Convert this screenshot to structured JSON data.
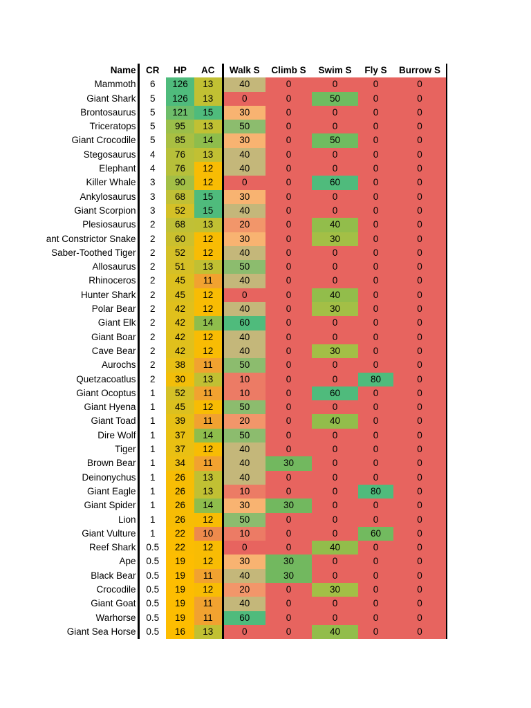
{
  "headers": [
    "Name",
    "CR",
    "HP",
    "AC",
    "Walk S",
    "Climb S",
    "Swim S",
    "Fly S",
    "Burrow S"
  ],
  "rows": [
    [
      "Mammoth",
      "6",
      "126",
      "13",
      "40",
      "0",
      "0",
      "0",
      "0"
    ],
    [
      "Giant Shark",
      "5",
      "126",
      "13",
      "0",
      "0",
      "50",
      "0",
      "0"
    ],
    [
      "Brontosaurus",
      "5",
      "121",
      "15",
      "30",
      "0",
      "0",
      "0",
      "0"
    ],
    [
      "Triceratops",
      "5",
      "95",
      "13",
      "50",
      "0",
      "0",
      "0",
      "0"
    ],
    [
      "Giant Crocodile",
      "5",
      "85",
      "14",
      "30",
      "0",
      "50",
      "0",
      "0"
    ],
    [
      "Stegosaurus",
      "4",
      "76",
      "13",
      "40",
      "0",
      "0",
      "0",
      "0"
    ],
    [
      "Elephant",
      "4",
      "76",
      "12",
      "40",
      "0",
      "0",
      "0",
      "0"
    ],
    [
      "Killer Whale",
      "3",
      "90",
      "12",
      "0",
      "0",
      "60",
      "0",
      "0"
    ],
    [
      "Ankylosaurus",
      "3",
      "68",
      "15",
      "30",
      "0",
      "0",
      "0",
      "0"
    ],
    [
      "Giant Scorpion",
      "3",
      "52",
      "15",
      "40",
      "0",
      "0",
      "0",
      "0"
    ],
    [
      "Plesiosaurus",
      "2",
      "68",
      "13",
      "20",
      "0",
      "40",
      "0",
      "0"
    ],
    [
      "ant Constrictor Snake",
      "2",
      "60",
      "12",
      "30",
      "0",
      "30",
      "0",
      "0"
    ],
    [
      "Saber-Toothed Tiger",
      "2",
      "52",
      "12",
      "40",
      "0",
      "0",
      "0",
      "0"
    ],
    [
      "Allosaurus",
      "2",
      "51",
      "13",
      "50",
      "0",
      "0",
      "0",
      "0"
    ],
    [
      "Rhinoceros",
      "2",
      "45",
      "11",
      "40",
      "0",
      "0",
      "0",
      "0"
    ],
    [
      "Hunter Shark",
      "2",
      "45",
      "12",
      "0",
      "0",
      "40",
      "0",
      "0"
    ],
    [
      "Polar Bear",
      "2",
      "42",
      "12",
      "40",
      "0",
      "30",
      "0",
      "0"
    ],
    [
      "Giant Elk",
      "2",
      "42",
      "14",
      "60",
      "0",
      "0",
      "0",
      "0"
    ],
    [
      "Giant Boar",
      "2",
      "42",
      "12",
      "40",
      "0",
      "0",
      "0",
      "0"
    ],
    [
      "Cave Bear",
      "2",
      "42",
      "12",
      "40",
      "0",
      "30",
      "0",
      "0"
    ],
    [
      "Aurochs",
      "2",
      "38",
      "11",
      "50",
      "0",
      "0",
      "0",
      "0"
    ],
    [
      "Quetzacoatlus",
      "2",
      "30",
      "13",
      "10",
      "0",
      "0",
      "80",
      "0"
    ],
    [
      "Giant Ocoptus",
      "1",
      "52",
      "11",
      "10",
      "0",
      "60",
      "0",
      "0"
    ],
    [
      "Giant Hyena",
      "1",
      "45",
      "12",
      "50",
      "0",
      "0",
      "0",
      "0"
    ],
    [
      "Giant Toad",
      "1",
      "39",
      "11",
      "20",
      "0",
      "40",
      "0",
      "0"
    ],
    [
      "Dire Wolf",
      "1",
      "37",
      "14",
      "50",
      "0",
      "0",
      "0",
      "0"
    ],
    [
      "Tiger",
      "1",
      "37",
      "12",
      "40",
      "0",
      "0",
      "0",
      "0"
    ],
    [
      "Brown Bear",
      "1",
      "34",
      "11",
      "40",
      "30",
      "0",
      "0",
      "0"
    ],
    [
      "Deinonychus",
      "1",
      "26",
      "13",
      "40",
      "0",
      "0",
      "0",
      "0"
    ],
    [
      "Giant Eagle",
      "1",
      "26",
      "13",
      "10",
      "0",
      "0",
      "80",
      "0"
    ],
    [
      "Giant Spider",
      "1",
      "26",
      "14",
      "30",
      "30",
      "0",
      "0",
      "0"
    ],
    [
      "Lion",
      "1",
      "26",
      "12",
      "50",
      "0",
      "0",
      "0",
      "0"
    ],
    [
      "Giant Vulture",
      "1",
      "22",
      "10",
      "10",
      "0",
      "0",
      "60",
      "0"
    ],
    [
      "Reef Shark",
      "0.5",
      "22",
      "12",
      "0",
      "0",
      "40",
      "0",
      "0"
    ],
    [
      "Ape",
      "0.5",
      "19",
      "12",
      "30",
      "30",
      "0",
      "0",
      "0"
    ],
    [
      "Black Bear",
      "0.5",
      "19",
      "11",
      "40",
      "30",
      "0",
      "0",
      "0"
    ],
    [
      "Crocodile",
      "0.5",
      "19",
      "12",
      "20",
      "0",
      "30",
      "0",
      "0"
    ],
    [
      "Giant Goat",
      "0.5",
      "19",
      "11",
      "40",
      "0",
      "0",
      "0",
      "0"
    ],
    [
      "Warhorse",
      "0.5",
      "19",
      "11",
      "60",
      "0",
      "0",
      "0",
      "0"
    ],
    [
      "Giant Sea Horse",
      "0.5",
      "16",
      "13",
      "0",
      "0",
      "40",
      "0",
      "0"
    ]
  ],
  "colors": {
    "hp": {
      "126": "#4fbb7c",
      "121": "#6dbd6a",
      "95": "#9bbf4a",
      "90": "#a3bf46",
      "85": "#a9bf42",
      "76": "#b7c03a",
      "68": "#c0c036",
      "60": "#cbc02e",
      "52": "#d4c027",
      "51": "#d5c027",
      "45": "#dcc01f",
      "42": "#e0c01c",
      "39": "#e6c016",
      "38": "#e8c015",
      "37": "#e9c013",
      "34": "#eebf10",
      "30": "#f2be0a",
      "26": "#f7bd05",
      "22": "#fbbd02",
      "19": "#fdbd01",
      "16": "#fdbd00"
    },
    "ac": {
      "15": "#4fbb7c",
      "14": "#8ebd4c",
      "13": "#c1c033",
      "12": "#f8bc04",
      "11": "#f1a230",
      "10": "#ed8a4c"
    },
    "walk": {
      "60": "#4fbb7c",
      "50": "#8cbc6e",
      "40": "#c4b77a",
      "30": "#f8b371",
      "20": "#f2966a",
      "10": "#ec7b65",
      "0": "#e7645f"
    },
    "climb": {
      "30": "#72b85f",
      "0": "#e7645f"
    },
    "swim": {
      "60": "#4fbb7c",
      "50": "#6fbc60",
      "40": "#92bd4b",
      "30": "#a3bf46",
      "0": "#e7645f"
    },
    "fly": {
      "80": "#4fbb7c",
      "60": "#72ba5f",
      "0": "#e7645f"
    },
    "burrow": {
      "0": "#e7645f"
    }
  }
}
